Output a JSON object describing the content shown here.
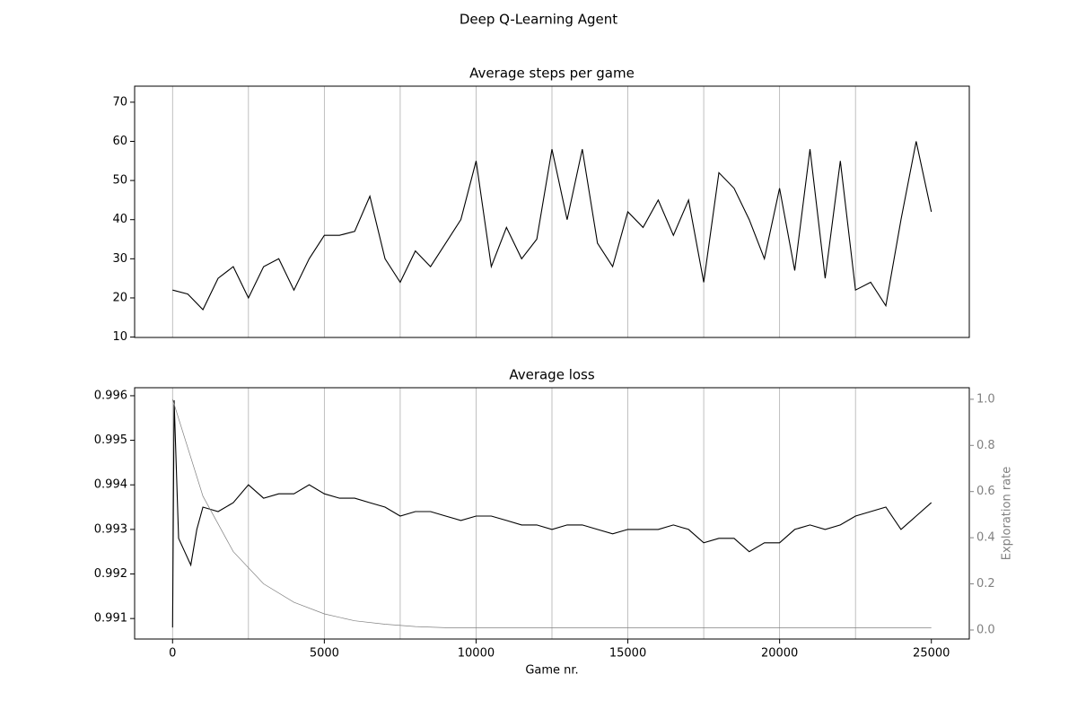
{
  "title": "Deep Q-Learning Agent",
  "chart_data": [
    {
      "type": "line",
      "title": "Average steps per game",
      "xlim": [
        -1250,
        26250
      ],
      "ylim": [
        9.9,
        74.1
      ],
      "yticks": [
        10,
        20,
        30,
        40,
        50,
        60,
        70
      ],
      "grid_x": [
        0,
        2500,
        5000,
        7500,
        10000,
        12500,
        15000,
        17500,
        20000,
        22500
      ],
      "series": [
        {
          "color": "#000000",
          "x": [
            0,
            500,
            1000,
            1500,
            2000,
            2500,
            3000,
            3500,
            4000,
            4500,
            5000,
            5500,
            6000,
            6500,
            7000,
            7500,
            8000,
            8500,
            9000,
            9500,
            10000,
            10500,
            11000,
            11500,
            12000,
            12500,
            13000,
            13500,
            14000,
            14500,
            15000,
            15500,
            16000,
            16500,
            17000,
            17500,
            18000,
            18500,
            19000,
            19500,
            20000,
            20500,
            21000,
            21500,
            22000,
            22500,
            23000,
            23500,
            24000,
            24500,
            25000
          ],
          "values": [
            22,
            21,
            17,
            25,
            28,
            20,
            28,
            30,
            22,
            30,
            36,
            36,
            37,
            46,
            30,
            24,
            32,
            28,
            34,
            40,
            55,
            28,
            38,
            30,
            35,
            58,
            40,
            58,
            34,
            28,
            42,
            38,
            45,
            36,
            45,
            24,
            52,
            48,
            40,
            30,
            48,
            27,
            58,
            25,
            55,
            22,
            24,
            18,
            40,
            60,
            42
          ]
        }
      ]
    },
    {
      "type": "line",
      "title": "Average loss",
      "xlabel": "Game nr.",
      "y2label": "Exploration rate",
      "xlim": [
        -1250,
        26250
      ],
      "xticks": [
        0,
        5000,
        10000,
        15000,
        20000,
        25000
      ],
      "ylim": [
        0.99054,
        0.99618
      ],
      "yticks": [
        0.991,
        0.992,
        0.993,
        0.994,
        0.995,
        0.996
      ],
      "y2lim": [
        -0.039,
        1.05
      ],
      "y2ticks": [
        {
          "value": 0,
          "label": "0.0"
        },
        0.2,
        0.4,
        0.6,
        0.8,
        {
          "value": 1,
          "label": "1.0"
        }
      ],
      "grid_x": [
        0,
        2500,
        5000,
        7500,
        10000,
        12500,
        15000,
        17500,
        20000,
        22500
      ],
      "series": [
        {
          "color": "#000000",
          "x": [
            0,
            50,
            200,
            400,
            600,
            800,
            1000,
            1500,
            2000,
            2500,
            3000,
            3500,
            4000,
            4500,
            5000,
            5500,
            6000,
            6500,
            7000,
            7500,
            8000,
            8500,
            9000,
            9500,
            10000,
            10500,
            11000,
            11500,
            12000,
            12500,
            13000,
            13500,
            14000,
            14500,
            15000,
            15500,
            16000,
            16500,
            17000,
            17500,
            18000,
            18500,
            19000,
            19500,
            20000,
            20500,
            21000,
            21500,
            22000,
            22500,
            23000,
            23500,
            24000,
            24500,
            25000
          ],
          "values": [
            0.9908,
            0.9959,
            0.9928,
            0.9925,
            0.9922,
            0.993,
            0.9935,
            0.9934,
            0.9936,
            0.994,
            0.9937,
            0.9938,
            0.9938,
            0.994,
            0.9938,
            0.9937,
            0.9937,
            0.9936,
            0.9935,
            0.9933,
            0.9934,
            0.9934,
            0.9933,
            0.9932,
            0.9933,
            0.9933,
            0.9932,
            0.9931,
            0.9931,
            0.993,
            0.9931,
            0.9931,
            0.993,
            0.9929,
            0.993,
            0.993,
            0.993,
            0.9931,
            0.993,
            0.9927,
            0.9928,
            0.9928,
            0.9925,
            0.9927,
            0.9927,
            0.993,
            0.9931,
            0.993,
            0.9931,
            0.9933,
            0.9934,
            0.9935,
            0.993,
            0.9933,
            0.9936
          ]
        },
        {
          "color": "#808080",
          "axis": "y2",
          "x": [
            0,
            1000,
            2000,
            3000,
            4000,
            5000,
            6000,
            7000,
            8000,
            9000,
            10000,
            15000,
            20000,
            25000
          ],
          "values": [
            1.0,
            0.58,
            0.34,
            0.2,
            0.12,
            0.07,
            0.04,
            0.025,
            0.015,
            0.01,
            0.01,
            0.01,
            0.01,
            0.01
          ]
        }
      ]
    }
  ]
}
